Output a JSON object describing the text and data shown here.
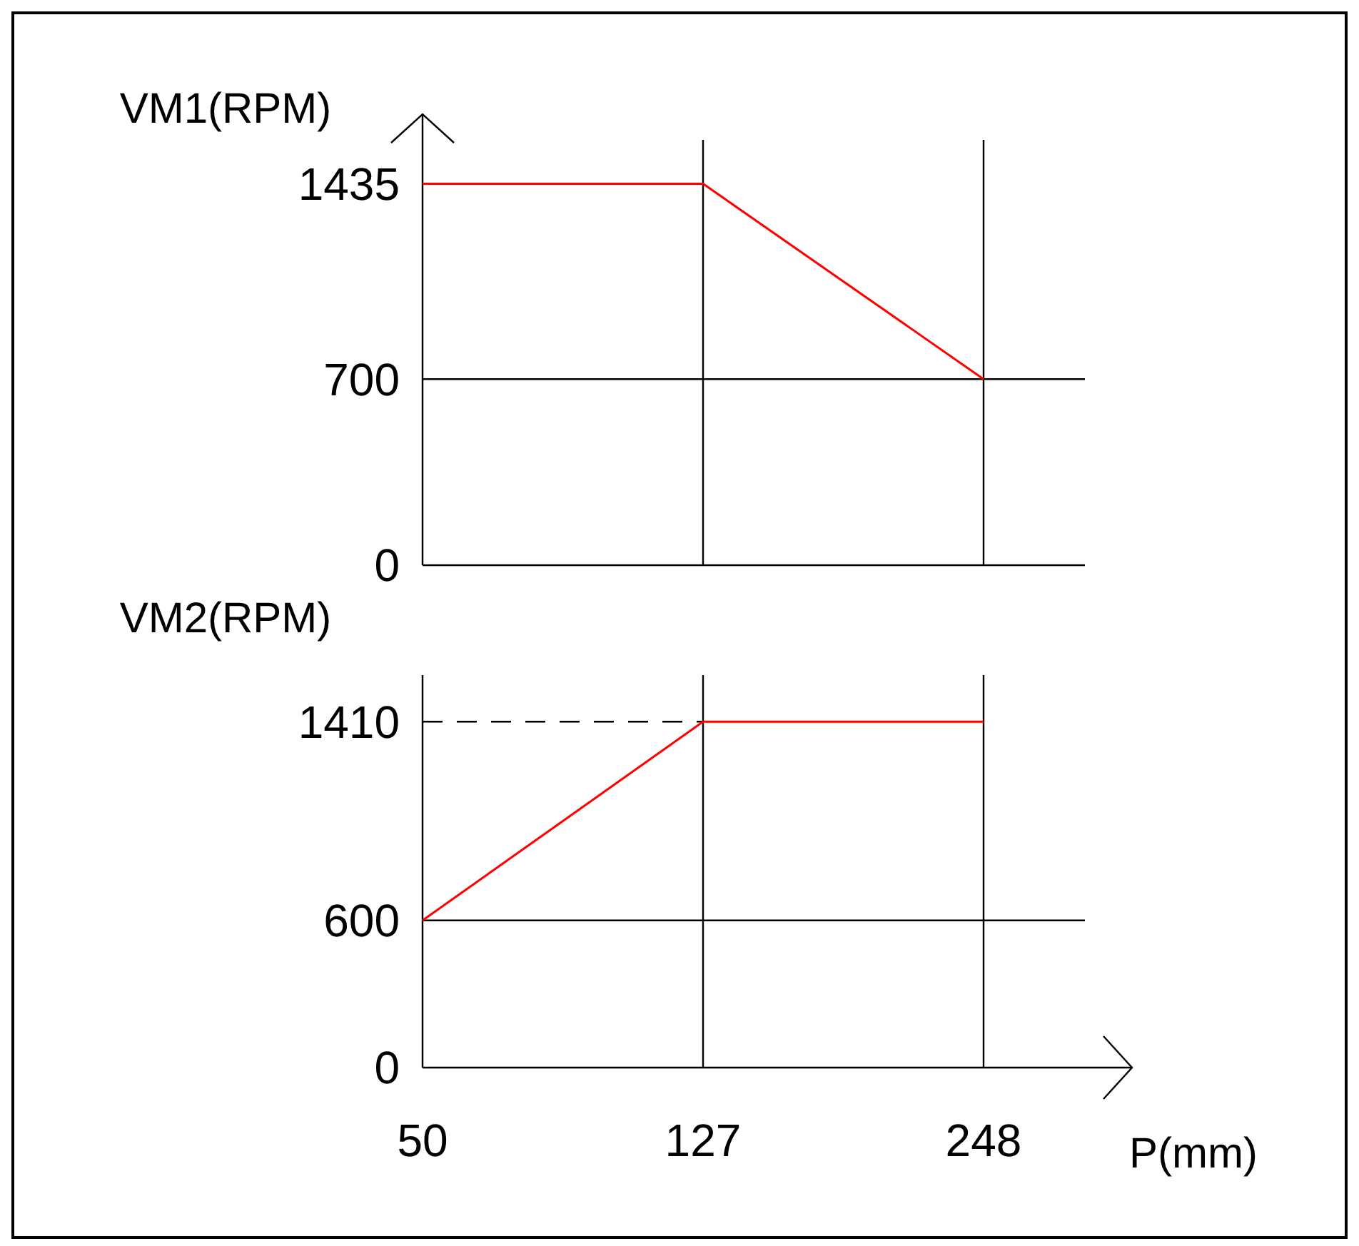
{
  "chart_data": [
    {
      "type": "line",
      "ylabel": "VM1(RPM)",
      "categories": [
        "50",
        "127",
        "248"
      ],
      "series": [
        {
          "color": "#ff0000",
          "values": [
            1435,
            1435,
            700
          ]
        }
      ],
      "ylim": [
        0,
        1600
      ],
      "yticks": [
        0,
        700,
        1435
      ],
      "grid": "x",
      "tick_labels": "y",
      "marker": "none",
      "line_style": "solid",
      "ref_lines": [
        {
          "axis": "y",
          "value": 700,
          "color": "#000000",
          "line_style": "solid"
        }
      ]
    },
    {
      "type": "line",
      "ylabel": "VM2(RPM)",
      "xlabel": "P(mm)",
      "categories": [
        "50",
        "127",
        "248"
      ],
      "series": [
        {
          "color": "#ff0000",
          "values": [
            600,
            1410,
            1410
          ]
        }
      ],
      "ylim": [
        0,
        1600
      ],
      "yticks": [
        0,
        600,
        1410
      ],
      "grid": "x",
      "marker": "none",
      "line_style": "solid",
      "ref_lines": [
        {
          "axis": "y",
          "value": 600,
          "color": "#000000",
          "line_style": "solid"
        },
        {
          "axis": "y",
          "value": 1410,
          "color": "#000000",
          "line_style": "dashed"
        }
      ]
    }
  ]
}
